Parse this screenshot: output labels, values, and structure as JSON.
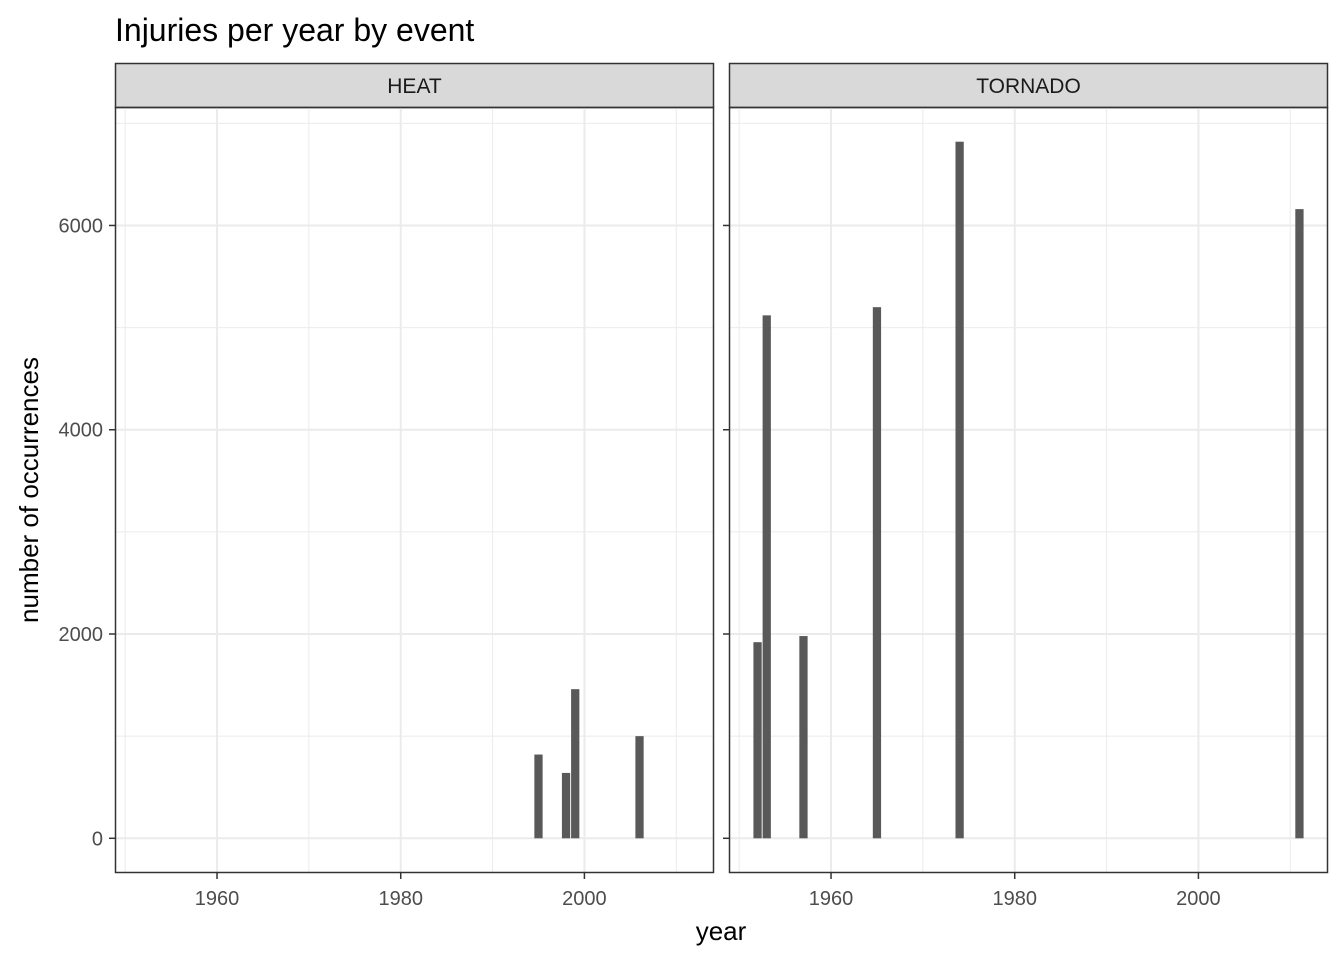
{
  "chart_data": {
    "type": "bar",
    "title": "Injuries per year by event",
    "xlabel": "year",
    "ylabel": "number of occurrences",
    "xlim": [
      1949,
      2014
    ],
    "ylim": [
      -330,
      7150
    ],
    "x_ticks": [
      1960,
      1980,
      2000
    ],
    "x_tick_labels": [
      "1960",
      "1980",
      "2000"
    ],
    "y_ticks": [
      0,
      2000,
      4000,
      6000
    ],
    "y_tick_labels": [
      "0",
      "2000",
      "4000",
      "6000"
    ],
    "grid": true,
    "legend": "none",
    "bar_color": "#595959",
    "facets": [
      {
        "name": "HEAT",
        "series": [
          {
            "x": [
              1995,
              1998,
              1999,
              2006
            ],
            "values": [
              820,
              640,
              1460,
              1000
            ]
          }
        ]
      },
      {
        "name": "TORNADO",
        "series": [
          {
            "x": [
              1952,
              1953,
              1957,
              1965,
              1974,
              2011
            ],
            "values": [
              1920,
              5120,
              1980,
              5200,
              6820,
              6160
            ]
          }
        ]
      }
    ]
  }
}
